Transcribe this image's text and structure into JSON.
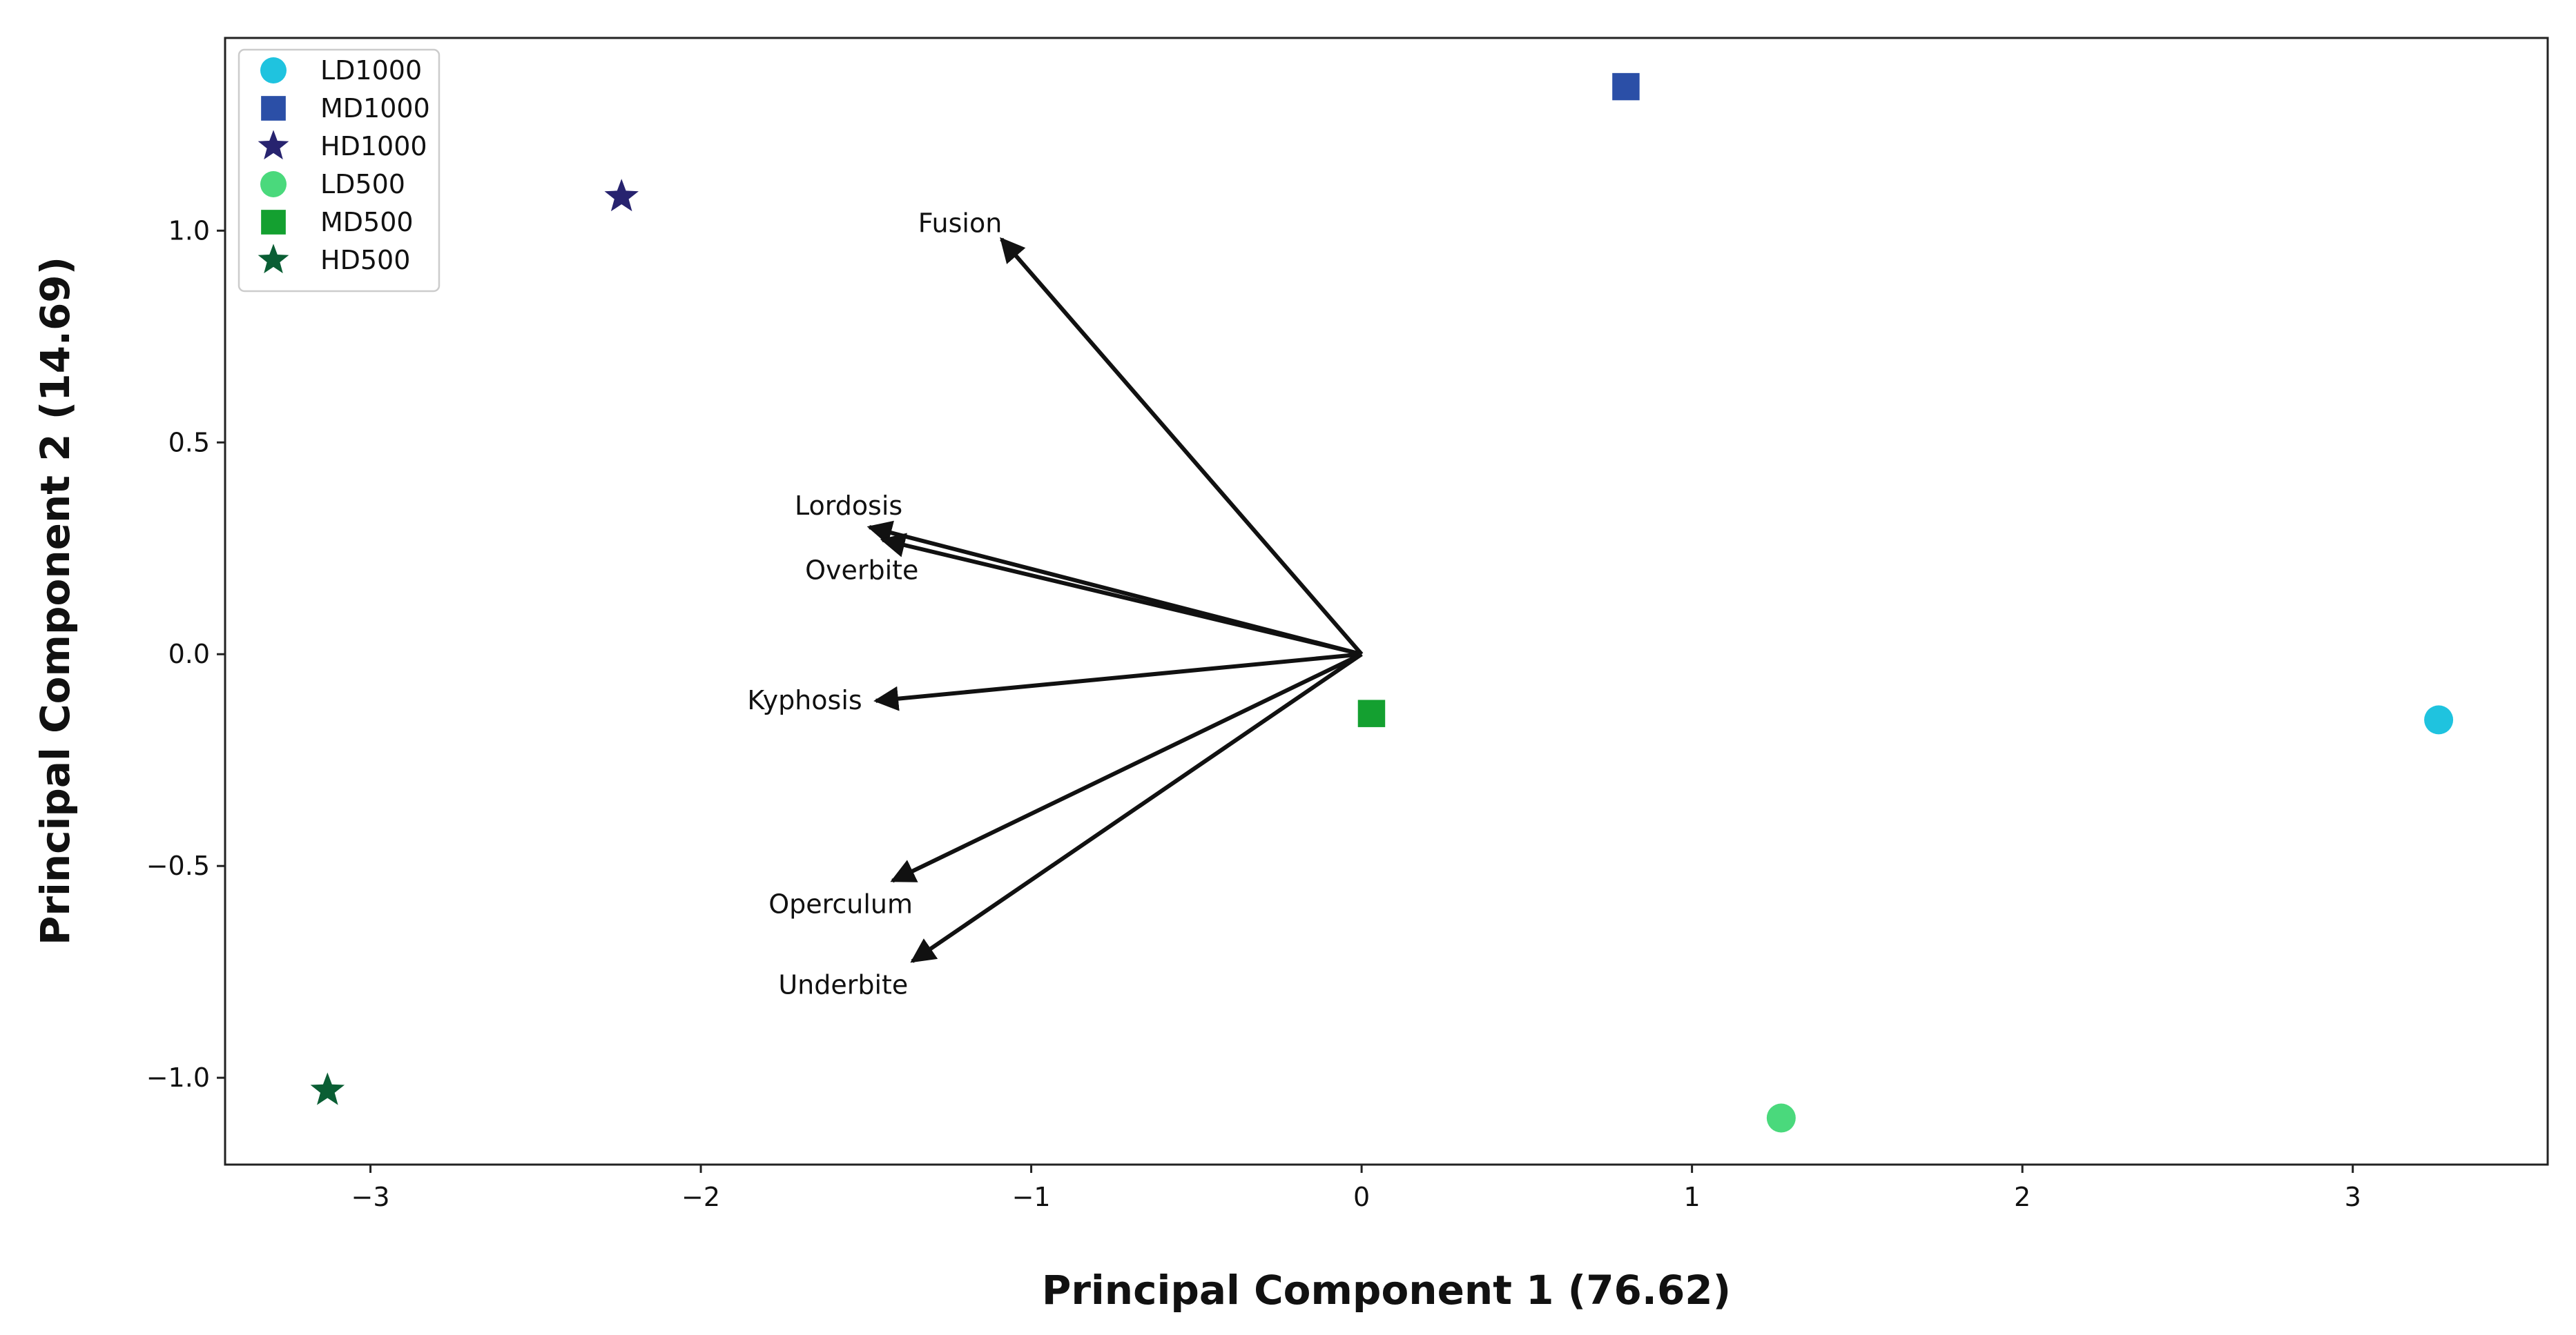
{
  "chart_data": {
    "type": "scatter",
    "title": "",
    "xlabel": "Principal Component 1 (76.62)",
    "ylabel": "Principal Component 2 (14.69)",
    "xlim": [
      -3.44,
      3.59
    ],
    "ylim": [
      -1.205,
      1.455
    ],
    "xticks": [
      -3,
      -2,
      -1,
      0,
      1,
      2,
      3
    ],
    "xtick_labels": [
      "−3",
      "−2",
      "−1",
      "0",
      "1",
      "2",
      "3"
    ],
    "yticks": [
      -1.0,
      -0.5,
      0.0,
      0.5,
      1.0
    ],
    "ytick_labels": [
      "−1.0",
      "−0.5",
      "0.0",
      "0.5",
      "1.0"
    ],
    "grid": false,
    "legend_position": "top-left",
    "series": [
      {
        "name": "LD1000",
        "marker": "circle",
        "color": "#1fc3df",
        "x": 3.26,
        "y": -0.155
      },
      {
        "name": "MD1000",
        "marker": "square",
        "color": "#2b4fa7",
        "x": 0.8,
        "y": 1.34
      },
      {
        "name": "HD1000",
        "marker": "star",
        "color": "#27236f",
        "x": -2.24,
        "y": 1.08
      },
      {
        "name": "LD500",
        "marker": "circle",
        "color": "#4ad97c",
        "x": 1.27,
        "y": -1.095
      },
      {
        "name": "MD500",
        "marker": "square",
        "color": "#14a030",
        "x": 0.03,
        "y": -0.14
      },
      {
        "name": "HD500",
        "marker": "star",
        "color": "#0a5e34",
        "x": -3.13,
        "y": -1.03
      }
    ],
    "loadings": [
      {
        "label": "Fusion",
        "x": -1.09,
        "y": 0.98
      },
      {
        "label": "Lordosis",
        "x": -1.49,
        "y": 0.3
      },
      {
        "label": "Overbite",
        "x": -1.45,
        "y": 0.27
      },
      {
        "label": "Kyphosis",
        "x": -1.47,
        "y": -0.11
      },
      {
        "label": "Operculum",
        "x": -1.42,
        "y": -0.535
      },
      {
        "label": "Underbite",
        "x": -1.36,
        "y": -0.725
      }
    ]
  }
}
